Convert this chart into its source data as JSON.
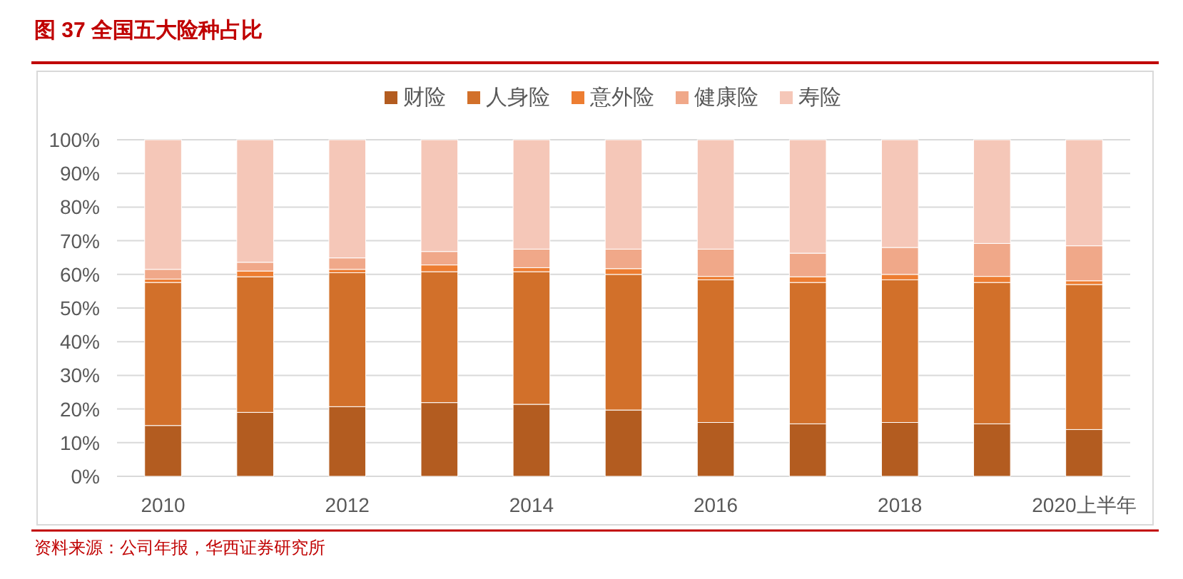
{
  "chart_data": {
    "type": "bar",
    "stacked": true,
    "title": "图 37 全国五大险种占比",
    "annotations": [
      "资料来源：公司年报，华西证券研究所"
    ],
    "categories": [
      "2010",
      null,
      "2012",
      null,
      "2014",
      null,
      "2016",
      null,
      "2018",
      null,
      "2020上半年"
    ],
    "series": [
      {
        "name": "财险",
        "color": "#b35c20",
        "values": [
          15.1,
          19.0,
          20.7,
          21.9,
          21.4,
          19.7,
          16.0,
          15.6,
          16.0,
          15.6,
          13.9
        ]
      },
      {
        "name": "人身险",
        "color": "#d2702a",
        "values": [
          42.5,
          40.3,
          39.8,
          38.9,
          39.4,
          40.3,
          42.4,
          42.0,
          42.4,
          42.0,
          43.1
        ]
      },
      {
        "name": "意外险",
        "color": "#ed7d31",
        "values": [
          1.0,
          1.7,
          1.0,
          2.0,
          1.2,
          1.7,
          1.0,
          1.7,
          1.6,
          1.8,
          1.1
        ]
      },
      {
        "name": "健康险",
        "color": "#f0a889",
        "values": [
          2.9,
          2.6,
          3.4,
          4.0,
          5.5,
          5.8,
          8.1,
          7.0,
          8.0,
          9.8,
          10.4
        ]
      },
      {
        "name": "寿险",
        "color": "#f5c7b8",
        "values": [
          38.5,
          36.4,
          35.1,
          33.2,
          32.5,
          32.5,
          32.5,
          33.7,
          32.0,
          30.8,
          31.5
        ]
      }
    ],
    "ylim": [
      0,
      100
    ],
    "yticks": [
      {
        "value": 0,
        "label": "0%"
      },
      {
        "value": 10,
        "label": "10%"
      },
      {
        "value": 20,
        "label": "20%"
      },
      {
        "value": 30,
        "label": "30%"
      },
      {
        "value": 40,
        "label": "40%"
      },
      {
        "value": 50,
        "label": "50%"
      },
      {
        "value": 60,
        "label": "60%"
      },
      {
        "value": 70,
        "label": "70%"
      },
      {
        "value": 80,
        "label": "80%"
      },
      {
        "value": 90,
        "label": "90%"
      },
      {
        "value": 100,
        "label": "100%"
      }
    ],
    "grid": "y",
    "legend": "top"
  }
}
